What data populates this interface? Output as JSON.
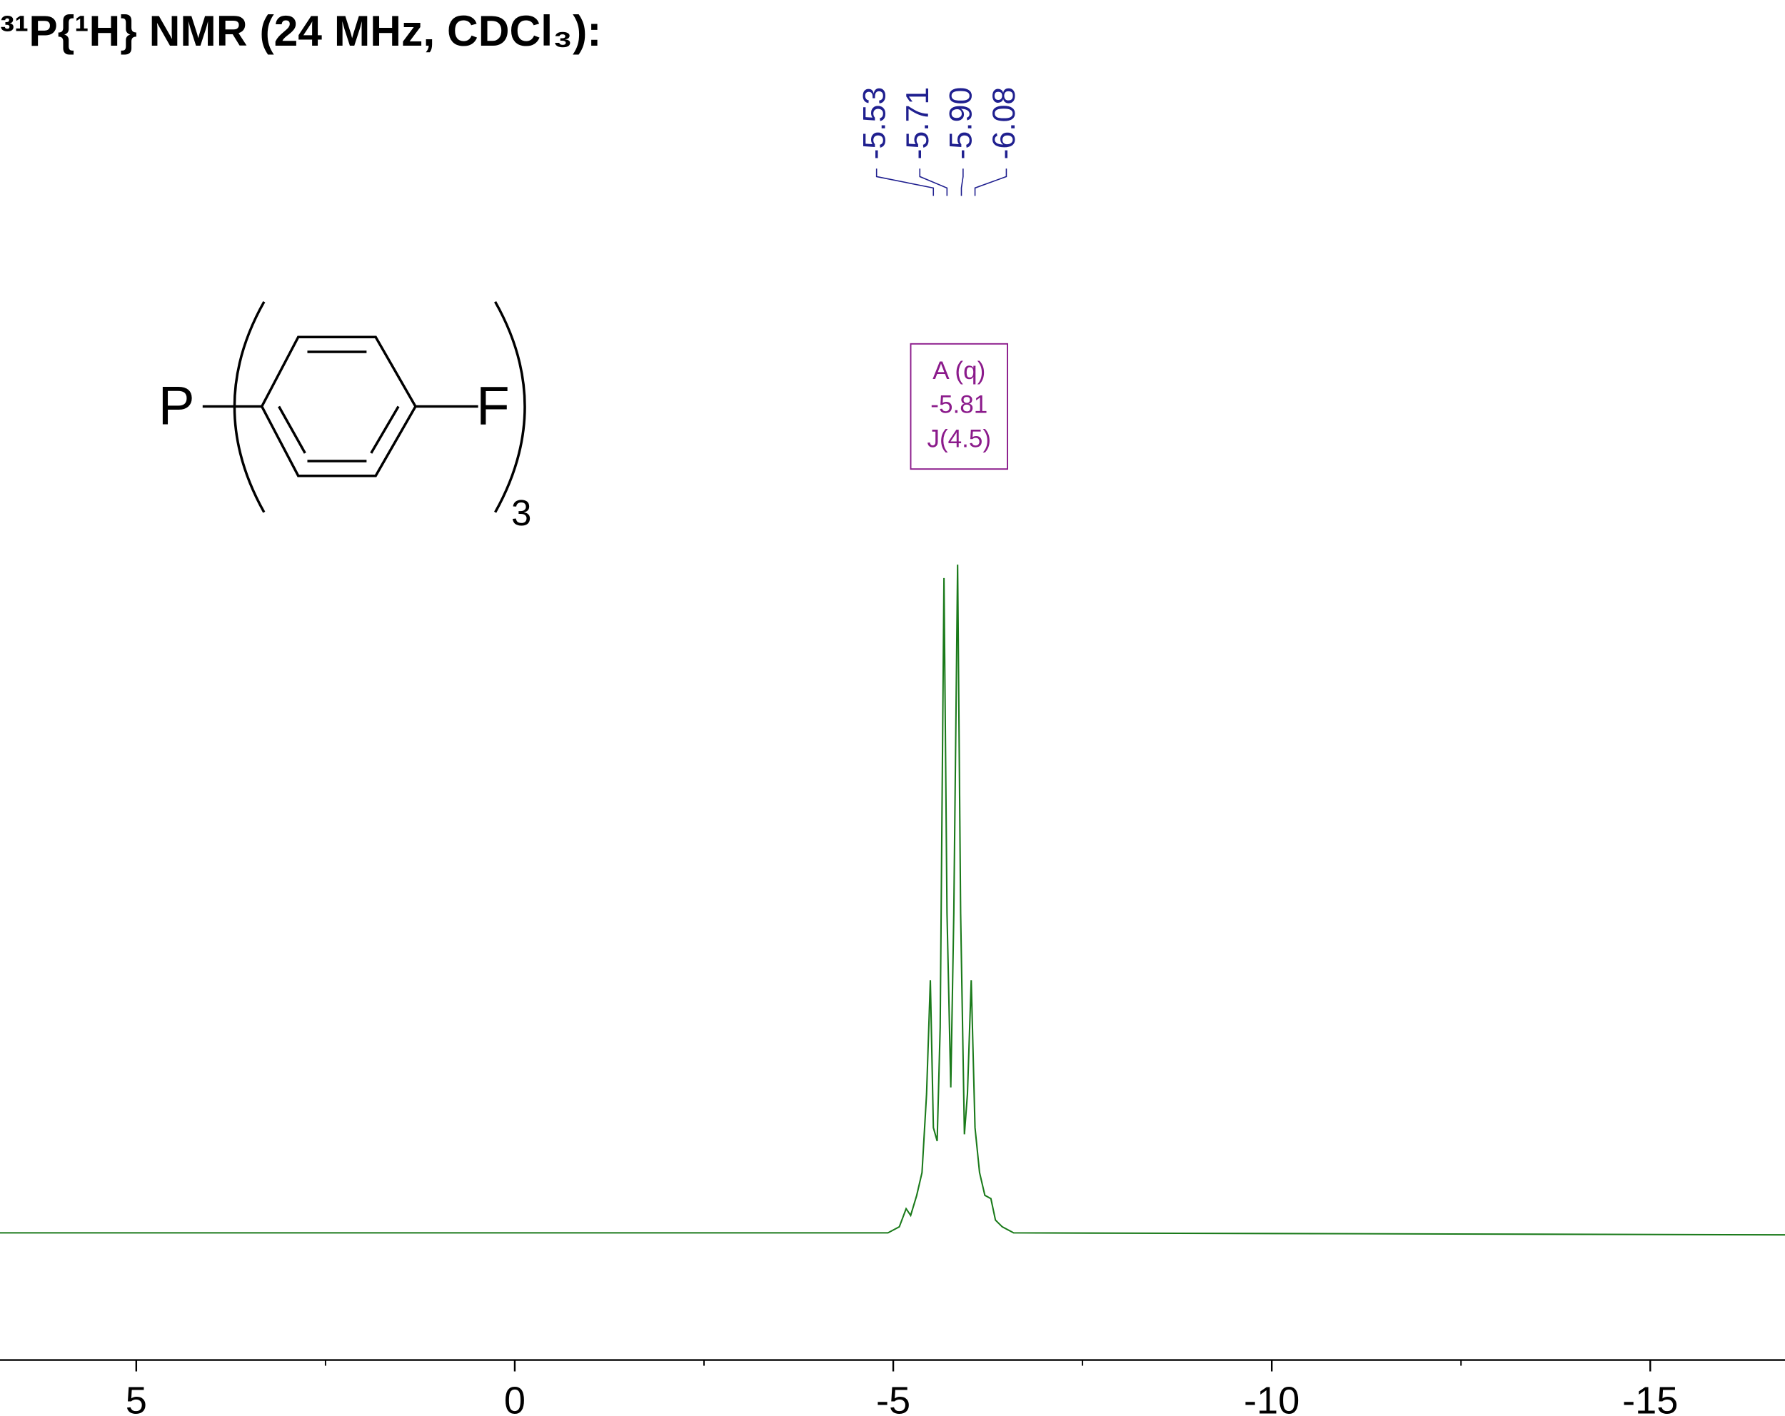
{
  "chart_data": {
    "type": "line",
    "title": "³¹P{¹H} NMR (24 MHz, CDCl₃):",
    "x": [
      6.8,
      -4.93,
      -5.08,
      -5.17,
      -5.23,
      -5.31,
      -5.38,
      -5.44,
      -5.49,
      -5.53,
      -5.58,
      -5.62,
      -5.67,
      -5.71,
      -5.76,
      -5.8,
      -5.85,
      -5.89,
      -5.94,
      -5.98,
      -6.03,
      -6.08,
      -6.14,
      -6.21,
      -6.29,
      -6.35,
      -6.44,
      -6.59,
      -16.78
    ],
    "series": [
      {
        "color": "#1a7a1a",
        "values": [
          0.3,
          0.3,
          1.2,
          3.9,
          2.9,
          5.9,
          9.3,
          21,
          38,
          16,
          14,
          31,
          98,
          48,
          22,
          48,
          100,
          48,
          15,
          21,
          38,
          16,
          9.3,
          5.9,
          5.4,
          2.2,
          1.2,
          0.3,
          0
        ]
      }
    ],
    "xlim": [
      6.8,
      -16.78
    ],
    "ylim": [
      0,
      100
    ],
    "xticks": [
      5,
      0,
      -5,
      -10,
      -15
    ],
    "xticks_minor": [
      2.5,
      -2.5,
      -7.5,
      -12.5
    ],
    "peaks": [
      -5.53,
      -5.71,
      -5.9,
      -6.08
    ],
    "peak_labels": [
      "-5.53",
      "-5.71",
      "-5.90",
      "-6.08"
    ],
    "peak_color": "#1f1f8f",
    "multiplet": {
      "lines": [
        "A (q)",
        "-5.81",
        "J(4.5)"
      ],
      "color": "#8b1a8b"
    },
    "structure": {
      "atoms": [
        "P",
        "F"
      ],
      "subscript": "3"
    }
  }
}
